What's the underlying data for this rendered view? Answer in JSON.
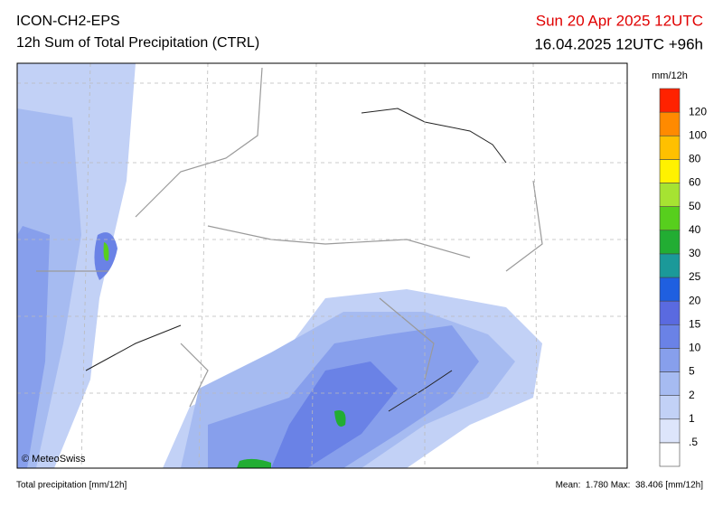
{
  "header": {
    "model": "ICON-CH2-EPS",
    "product": "12h Sum of Total Precipitation (CTRL)",
    "valid": "Sun 20 Apr 2025 12UTC",
    "run": "16.04.2025 12UTC +96h"
  },
  "legend": {
    "unit": "mm/12h",
    "levels": [
      ".5",
      "1",
      "2",
      "5",
      "10",
      "15",
      "20",
      "25",
      "30",
      "40",
      "50",
      "60",
      "80",
      "100",
      "120"
    ],
    "colors": [
      "#ffffff",
      "#dde5fb",
      "#c2d1f6",
      "#a6bbf1",
      "#879fec",
      "#6a82e6",
      "#5a6ae0",
      "#1f5fe0",
      "#1b9999",
      "#22ad33",
      "#57cf1d",
      "#a6e332",
      "#fff200",
      "#ffc000",
      "#ff8a00",
      "#ff2200"
    ]
  },
  "copyright": "© MeteoSwiss",
  "footer": {
    "left": "Total precipitation [mm/12h]",
    "stats": "Mean:  1.780 Max:  38.406 [mm/12h]"
  }
}
